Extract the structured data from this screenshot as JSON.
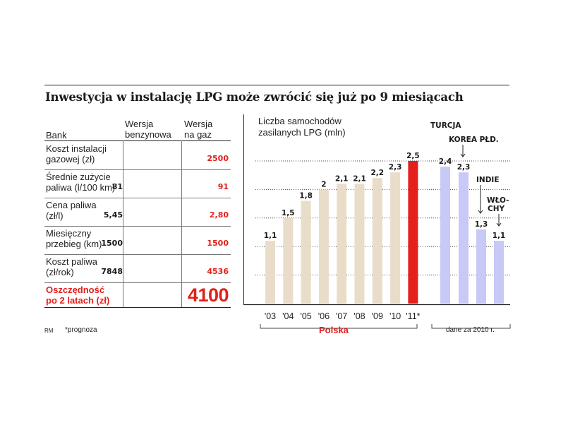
{
  "headline": "Inwestycja w instalację LPG może zwrócić się już po 9 miesiącach",
  "table": {
    "col_bank": "Bank",
    "col_petrol": [
      "Wersja",
      "benzynowa"
    ],
    "col_gas": [
      "Wersja",
      "na gaz"
    ],
    "rows": [
      {
        "label": [
          "Koszt instalacji",
          "gazowej (zł)"
        ],
        "petrol": "",
        "gas": "2500"
      },
      {
        "label": [
          "Średnie zużycie",
          "paliwa (l/100 km)"
        ],
        "petrol": "81",
        "gas": "91"
      },
      {
        "label": [
          "Cena paliwa",
          "(zł/l)"
        ],
        "petrol": "5,45",
        "gas": "2,80"
      },
      {
        "label": [
          "Miesięczny",
          "przebieg (km)"
        ],
        "petrol": "1500",
        "gas": "1500"
      },
      {
        "label": [
          "Koszt paliwa",
          "(zł/rok)"
        ],
        "petrol": "7848",
        "gas": "4536"
      }
    ],
    "savings_label": [
      "Oszczędność",
      "po 2 latach (zł)"
    ],
    "savings_value": "4100"
  },
  "footnote_source": "RM",
  "footnote_forecast": "*prognoza",
  "colors": {
    "poland": "#e9ddca",
    "poland_forecast": "#e3201b",
    "countries": "#c8c9f6",
    "accent": "#e3201b"
  },
  "chart_data": {
    "type": "bar",
    "title": [
      "Liczba samochodów",
      "zasilanych LPG (mln)"
    ],
    "groups": [
      {
        "name": "Polska",
        "categories": [
          "'03",
          "'04",
          "'05",
          "'06",
          "'07",
          "'08",
          "'09",
          "'10",
          "'11*"
        ],
        "values": [
          1.1,
          1.5,
          1.8,
          2,
          2.1,
          2.1,
          2.2,
          2.3,
          2.5
        ],
        "labels": [
          "1,1",
          "1,5",
          "1,8",
          "2",
          "2,1",
          "2,1",
          "2,2",
          "2,3",
          "2,5"
        ],
        "highlight_index": 8
      },
      {
        "note": "dane za 2010 r.",
        "categories": [
          "TURCJA",
          "KOREA PŁD.",
          "INDIE",
          "WŁO-CHY"
        ],
        "values": [
          2.4,
          2.3,
          1.3,
          1.1
        ],
        "labels": [
          "2,4",
          "2,3",
          "1,3",
          "1,1"
        ]
      }
    ],
    "ylim": [
      0,
      2.5
    ],
    "grid": true
  }
}
